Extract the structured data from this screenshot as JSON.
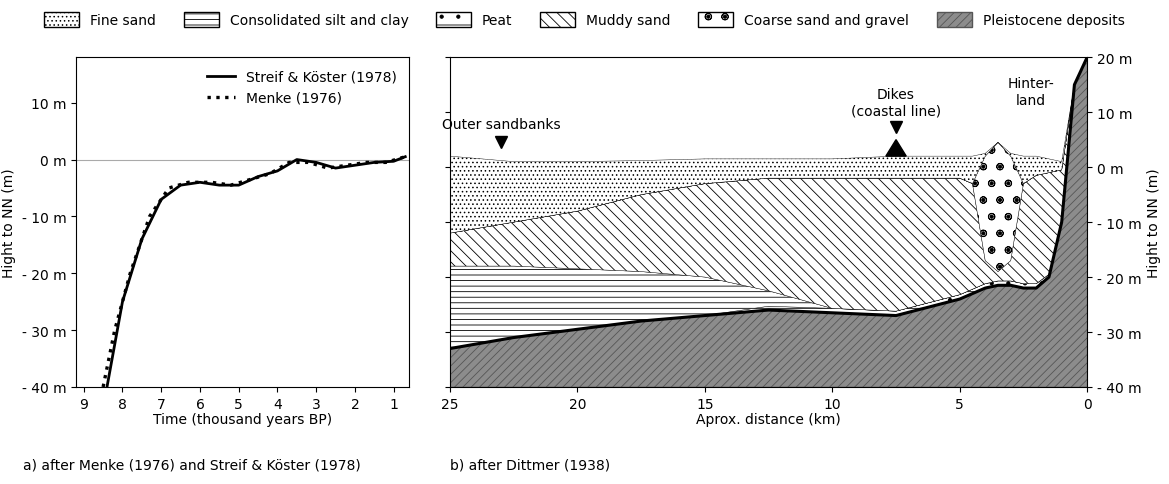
{
  "layer_legend": {
    "legend": "upper center",
    "items": [
      {
        "name": "Fine sand",
        "color": "#ffffff"
      },
      {
        "name": "Consolidated silt and clay",
        "color": "#ffffff"
      },
      {
        "name": "Peat",
        "color": "#ffffff"
      },
      {
        "name": "Muddy sand",
        "color": "#ffffff"
      },
      {
        "name": "Coarse sand and gravel",
        "color": "#ffffff"
      },
      {
        "name": "Pleistocene deposits",
        "color": "#8c8c8c"
      }
    ]
  },
  "chart_data": [
    {
      "type": "line",
      "caption": "a) after Menke (1976) and Streif & Köster (1978)",
      "x_label": "Time (thousand years BP)",
      "y_label": "Hight to NN (m)",
      "xlim": [
        9.2,
        0.6
      ],
      "xticks": [
        9,
        8,
        7,
        6,
        5,
        4,
        3,
        2,
        1
      ],
      "ylim": [
        -40,
        18
      ],
      "yticks": [
        {
          "value": -40,
          "label": "- 40 m"
        },
        {
          "value": -30,
          "label": "- 30 m"
        },
        {
          "value": -20,
          "label": "- 20 m"
        },
        {
          "value": -10,
          "label": "- 10 m"
        },
        {
          "value": 0,
          "label": "0 m"
        },
        {
          "value": 10,
          "label": "10 m"
        }
      ],
      "reference_line": 0,
      "legend": "upper right",
      "series": [
        {
          "name": "Streif & Köster (1978)",
          "color": "#000000",
          "line_style": "solid",
          "x": [
            8.4,
            8.0,
            7.5,
            7.0,
            6.5,
            6.0,
            5.5,
            5.0,
            4.5,
            4.0,
            3.5,
            3.0,
            2.5,
            2.0,
            1.5,
            1.0,
            0.7
          ],
          "values": [
            -40,
            -25,
            -14,
            -7,
            -4.5,
            -4,
            -4.5,
            -4.5,
            -3,
            -2,
            0,
            -0.5,
            -1.5,
            -1,
            -0.5,
            -0.3,
            0.5
          ]
        },
        {
          "name": "Menke (1976)",
          "color": "#000000",
          "line_style": "dotted",
          "x": [
            8.5,
            8.2,
            7.8,
            7.3,
            6.8,
            6.3,
            5.7,
            5.2,
            4.7,
            4.2,
            3.7,
            3.2,
            2.7,
            2.2,
            1.7,
            1.2,
            0.7
          ],
          "values": [
            -40,
            -30,
            -20,
            -10,
            -5,
            -4,
            -4,
            -4.5,
            -3.5,
            -2.5,
            -0.5,
            -0.5,
            -1.5,
            -1,
            -0.5,
            -0.5,
            0.5
          ]
        }
      ]
    },
    {
      "type": "cross_section",
      "caption": "b) after Dittmer (1938)",
      "x_label": "Aprox. distance (km)",
      "y_label": "Hight to NN (m)",
      "xlim": [
        25,
        0
      ],
      "xticks": [
        25,
        20,
        15,
        10,
        5,
        0
      ],
      "ylim": [
        -40,
        20
      ],
      "yticks": [
        {
          "value": -40,
          "label": "- 40 m"
        },
        {
          "value": -30,
          "label": "- 30 m"
        },
        {
          "value": -20,
          "label": "- 20 m"
        },
        {
          "value": -10,
          "label": "- 10 m"
        },
        {
          "value": 0,
          "label": "0 m"
        },
        {
          "value": 10,
          "label": "10 m"
        },
        {
          "value": 20,
          "label": "20 m"
        }
      ],
      "x": [
        25,
        22.5,
        20,
        17.5,
        15,
        12.5,
        10,
        7.5,
        5,
        4.5,
        4,
        3.5,
        3,
        2.5,
        2,
        1.5,
        1,
        0.5,
        0
      ],
      "layers": [
        {
          "name": "Pleistocene deposits",
          "bottom": [
            -40,
            -40,
            -40,
            -40,
            -40,
            -40,
            -40,
            -40,
            -40,
            -40,
            -40,
            -40,
            -40,
            -40,
            -40,
            -40,
            -40,
            -40,
            -40
          ],
          "top": [
            -33,
            -31,
            -29.5,
            -28,
            -27,
            -26,
            -26.5,
            -27,
            -24,
            -23,
            -22,
            -21.5,
            -21.5,
            -22,
            -22,
            -20,
            -10,
            15,
            20
          ]
        },
        {
          "name": "Peat",
          "bottom": [
            -33,
            -31,
            -29.5,
            -28,
            -27,
            -26,
            -26.5,
            -27,
            -24,
            -23,
            -22,
            -21.5,
            -21.5,
            -22,
            -22,
            -20,
            -10,
            15,
            20
          ],
          "top": [
            -33,
            -31,
            -29.5,
            -28,
            -27,
            -25.3,
            -25.7,
            -26.2,
            -23.2,
            -22.2,
            -21.2,
            -20.7,
            -20.7,
            -21.2,
            -21.2,
            -19.5,
            -10,
            15,
            20
          ]
        },
        {
          "name": "Consolidated silt and clay",
          "bottom": [
            -33,
            -31,
            -29.5,
            -28,
            -27,
            -25.3,
            -25.7,
            -26.2,
            -23.2,
            -22.2,
            -21.2,
            -20.7,
            -20.7,
            -21.2,
            -21.2,
            -19.5,
            -10,
            15,
            20
          ],
          "top": [
            -18,
            -18,
            -18.5,
            -19,
            -20,
            -22.5,
            -25.7,
            -26.2,
            -23.2,
            -22.2,
            -21.2,
            -20.7,
            -20.7,
            -21.2,
            -21.2,
            -19.5,
            -10,
            15,
            20
          ]
        },
        {
          "name": "Muddy sand",
          "bottom": [
            -18,
            -18,
            -18.5,
            -19,
            -20,
            -22.5,
            -25.7,
            -26.2,
            -23.2,
            -22.2,
            -21.2,
            -20.7,
            -20.7,
            -21.2,
            -21.2,
            -19.5,
            -10,
            15,
            20
          ],
          "top": [
            -12,
            -10,
            -8,
            -5,
            -3,
            -2,
            -2,
            -2,
            -2,
            -3,
            -17,
            -19,
            -17,
            -3,
            -1.5,
            -1,
            -0.5,
            15,
            20
          ]
        },
        {
          "name": "Coarse sand and gravel",
          "bottom": [
            -12,
            -10,
            -8,
            -5,
            -3,
            -2,
            -2,
            -2,
            -2,
            -3,
            -17,
            -19,
            -17,
            -3,
            -1.5,
            -1,
            -0.5,
            15,
            20
          ],
          "top": [
            -12,
            -10,
            -8,
            -5,
            -3,
            -2,
            -2,
            -2,
            -2,
            -3,
            2,
            4.5,
            2,
            -3,
            -1.5,
            -1,
            -0.5,
            15,
            20
          ]
        },
        {
          "name": "Fine sand",
          "bottom": [
            -12,
            -10,
            -8,
            -5,
            -3,
            -2,
            -2,
            -2,
            -2,
            -3,
            2,
            4.5,
            2,
            -3,
            -1.5,
            -1,
            -0.5,
            15,
            20
          ],
          "top": [
            2,
            1,
            1,
            1.2,
            1.5,
            1.5,
            1.5,
            2,
            2,
            2,
            2.5,
            4.5,
            2.5,
            2,
            2,
            1.5,
            1,
            15,
            20
          ]
        }
      ],
      "boundary": "Pleistocene deposits",
      "dike": {
        "x": 7.5,
        "base": 2,
        "top": 5,
        "width": 0.8
      },
      "annotations": [
        {
          "text": "Outer sandbanks",
          "x": 23,
          "y": 6.5
        },
        {
          "text": "Dikes\n(coastal line)",
          "x": 7.5,
          "y": 9
        },
        {
          "text": "Hinter-\nland",
          "x": 2.2,
          "y": 11
        }
      ],
      "markers": [
        {
          "x": 23,
          "y": 4.5
        },
        {
          "x": 7.5,
          "y": 7.3
        }
      ]
    }
  ]
}
